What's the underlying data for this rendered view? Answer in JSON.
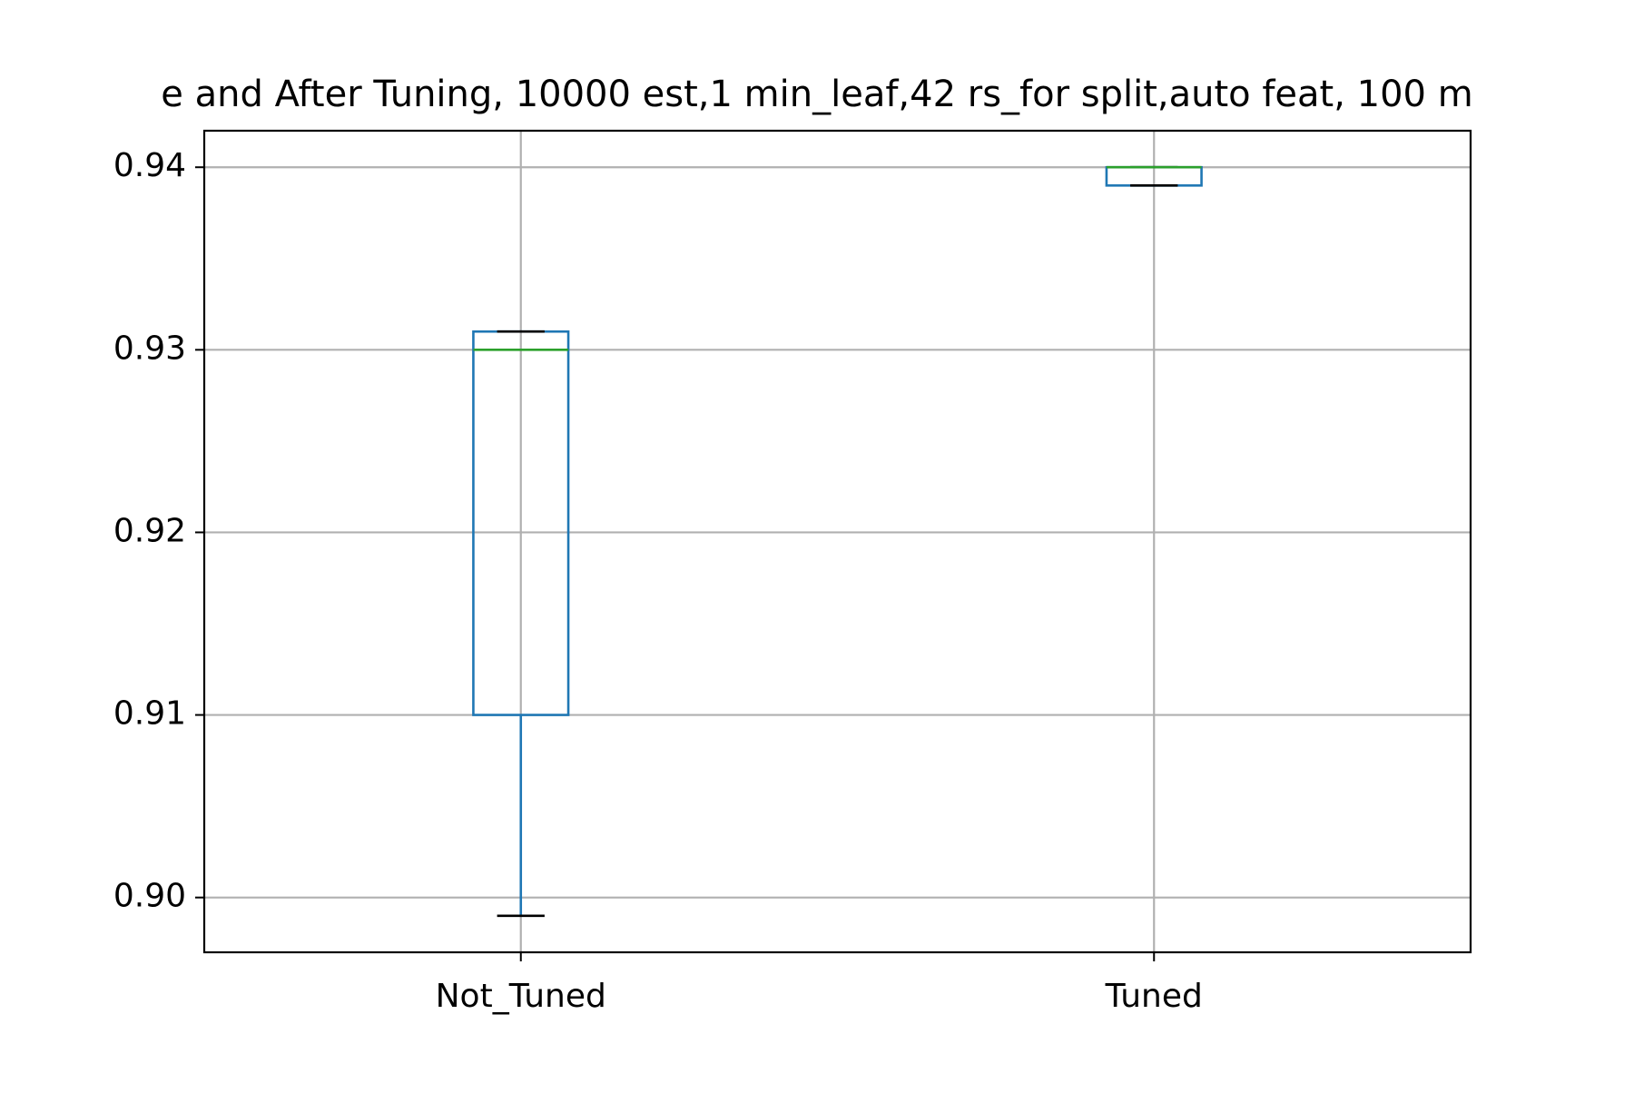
{
  "chart_data": {
    "type": "box",
    "title": "e and After Tuning, 10000 est,1 min_leaf,42 rs_for split,auto feat, 100 m",
    "xlabel": "",
    "ylabel": "",
    "categories": [
      "Not_Tuned",
      "Tuned"
    ],
    "boxes": [
      {
        "category": "Not_Tuned",
        "whisker_low": 0.899,
        "q1": 0.91,
        "median": 0.93,
        "q3": 0.931,
        "whisker_high": 0.931
      },
      {
        "category": "Tuned",
        "whisker_low": 0.939,
        "q1": 0.939,
        "median": 0.94,
        "q3": 0.94,
        "whisker_high": 0.94
      }
    ],
    "ylim": [
      0.897,
      0.942
    ],
    "yticks": [
      "0.90",
      "0.91",
      "0.92",
      "0.93",
      "0.94"
    ],
    "grid": true,
    "legend": "none",
    "colors": {
      "box": "#1f77b4",
      "median": "#2ca02c",
      "cap": "#000000",
      "grid": "#b0b0b0",
      "axis": "#000000"
    }
  }
}
